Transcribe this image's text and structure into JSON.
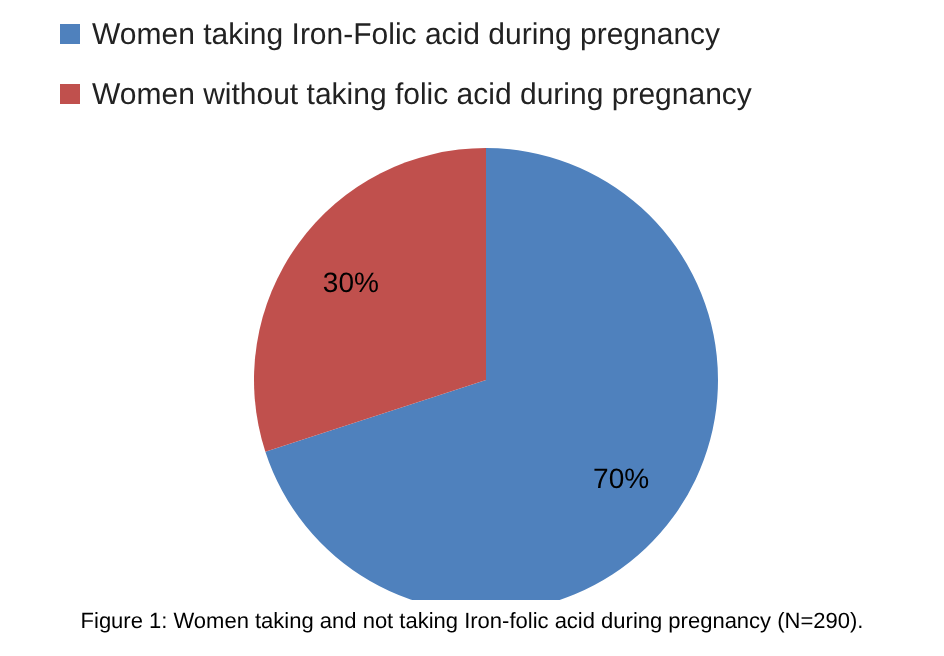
{
  "chart_data": {
    "type": "pie",
    "categories": [
      "Women taking Iron-Folic acid during pregnancy",
      "Women without taking folic acid during pregnancy"
    ],
    "values": [
      70,
      30
    ],
    "colors": [
      "#4f81bd",
      "#c0504d"
    ],
    "value_labels": [
      "70%",
      "30%"
    ],
    "legend": "top",
    "annotations": [
      "Figure 1: Women taking and not taking Iron-folic acid during pregnancy (N=290)."
    ]
  }
}
